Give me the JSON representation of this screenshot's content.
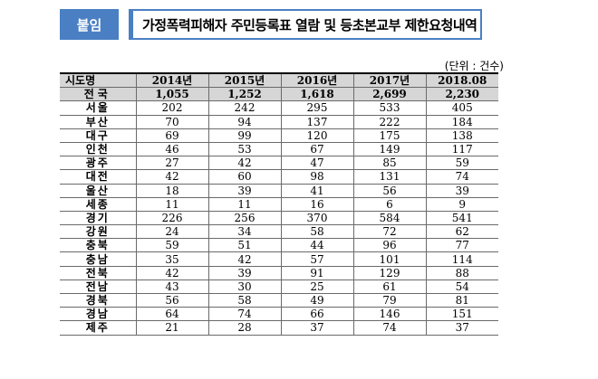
{
  "header": {
    "badge": "붙임",
    "title": "가정폭력피해자 주민등록표 열람 및 등초본교부 제한요청내역"
  },
  "unit": "(단위 : 건수)",
  "table": {
    "columns": [
      "시도명",
      "2014년",
      "2015년",
      "2016년",
      "2017년",
      "2018.08"
    ],
    "total": [
      "전국",
      "1,055",
      "1,252",
      "1,618",
      "2,699",
      "2,230"
    ],
    "rows": [
      [
        "서울",
        "202",
        "242",
        "295",
        "533",
        "405"
      ],
      [
        "부산",
        "70",
        "94",
        "137",
        "222",
        "184"
      ],
      [
        "대구",
        "69",
        "99",
        "120",
        "175",
        "138"
      ],
      [
        "인천",
        "46",
        "53",
        "67",
        "149",
        "117"
      ],
      [
        "광주",
        "27",
        "42",
        "47",
        "85",
        "59"
      ],
      [
        "대전",
        "42",
        "60",
        "98",
        "131",
        "74"
      ],
      [
        "울산",
        "18",
        "39",
        "41",
        "56",
        "39"
      ],
      [
        "세종",
        "11",
        "11",
        "16",
        "6",
        "9"
      ],
      [
        "경기",
        "226",
        "256",
        "370",
        "584",
        "541"
      ],
      [
        "강원",
        "24",
        "34",
        "58",
        "72",
        "62"
      ],
      [
        "충북",
        "59",
        "51",
        "44",
        "96",
        "77"
      ],
      [
        "충남",
        "35",
        "42",
        "57",
        "101",
        "114"
      ],
      [
        "전북",
        "42",
        "39",
        "91",
        "129",
        "88"
      ],
      [
        "전남",
        "43",
        "30",
        "25",
        "61",
        "54"
      ],
      [
        "경북",
        "56",
        "58",
        "49",
        "79",
        "81"
      ],
      [
        "경남",
        "64",
        "74",
        "66",
        "146",
        "151"
      ],
      [
        "제주",
        "21",
        "28",
        "37",
        "74",
        "37"
      ]
    ]
  }
}
